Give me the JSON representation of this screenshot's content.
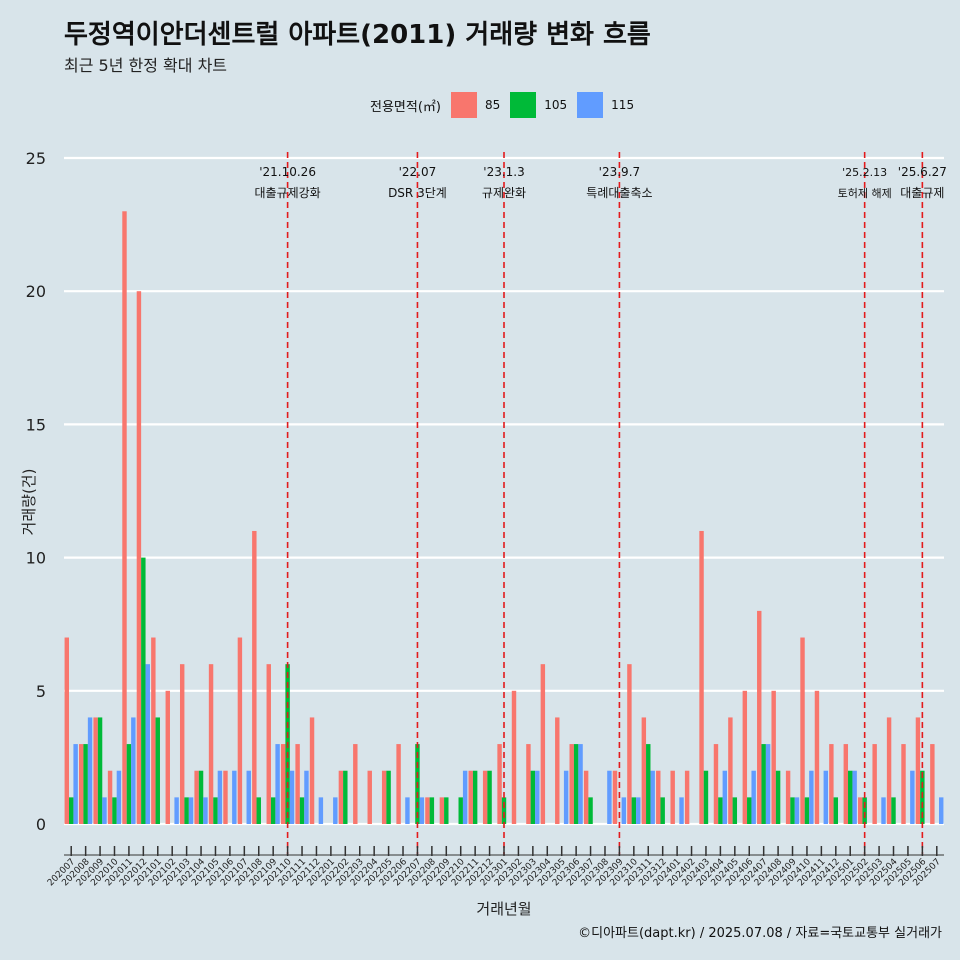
{
  "title": "두정역이안더센트럴 아파트(2011) 거래량 변화 흐름",
  "subtitle": "최근 5년 한정 확대 차트",
  "caption": "©디아파트(dapt.kr) / 2025.07.08 / 자료=국토교통부 실거래가",
  "legend": {
    "title": "전용면적(㎡)",
    "items": [
      {
        "label": "85",
        "color": "#f8766d"
      },
      {
        "label": "105",
        "color": "#00ba38"
      },
      {
        "label": "115",
        "color": "#619cff"
      }
    ]
  },
  "chart_data": {
    "type": "bar",
    "xlabel": "거래년월",
    "ylabel": "거래량(건)",
    "ylim": [
      0,
      25
    ],
    "yticks": [
      0,
      5,
      10,
      15,
      20,
      25
    ],
    "grid": true,
    "legend_position": "top",
    "categories": [
      "202007",
      "202008",
      "202009",
      "202010",
      "202011",
      "202012",
      "202101",
      "202102",
      "202103",
      "202104",
      "202105",
      "202106",
      "202107",
      "202108",
      "202109",
      "202110",
      "202111",
      "202112",
      "202201",
      "202202",
      "202203",
      "202204",
      "202205",
      "202206",
      "202207",
      "202208",
      "202209",
      "202210",
      "202211",
      "202212",
      "202301",
      "202302",
      "202303",
      "202304",
      "202305",
      "202306",
      "202307",
      "202308",
      "202309",
      "202310",
      "202311",
      "202312",
      "202401",
      "202402",
      "202403",
      "202404",
      "202405",
      "202406",
      "202407",
      "202408",
      "202409",
      "202410",
      "202411",
      "202412",
      "202501",
      "202502",
      "202503",
      "202504",
      "202505",
      "202506",
      "202507"
    ],
    "series": [
      {
        "name": "85",
        "color": "#f8766d",
        "values": [
          7,
          3,
          4,
          2,
          23,
          20,
          7,
          5,
          6,
          2,
          6,
          2,
          7,
          11,
          6,
          3,
          3,
          4,
          0,
          2,
          3,
          2,
          2,
          3,
          0,
          1,
          1,
          0,
          2,
          2,
          3,
          5,
          3,
          6,
          4,
          3,
          2,
          0,
          2,
          6,
          4,
          2,
          2,
          2,
          11,
          3,
          4,
          5,
          8,
          5,
          2,
          7,
          5,
          3,
          3,
          1,
          3,
          4,
          3,
          4,
          3
        ]
      },
      {
        "name": "105",
        "color": "#00ba38",
        "values": [
          1,
          3,
          4,
          1,
          3,
          10,
          4,
          0,
          1,
          2,
          1,
          0,
          0,
          1,
          1,
          6,
          1,
          0,
          0,
          2,
          0,
          0,
          2,
          0,
          3,
          1,
          1,
          1,
          2,
          2,
          1,
          0,
          2,
          0,
          0,
          3,
          1,
          0,
          0,
          1,
          3,
          1,
          0,
          0,
          2,
          1,
          1,
          1,
          3,
          2,
          1,
          1,
          0,
          1,
          2,
          1,
          0,
          1,
          0,
          2,
          0
        ]
      },
      {
        "name": "115",
        "color": "#619cff",
        "values": [
          3,
          4,
          1,
          2,
          4,
          6,
          0,
          1,
          1,
          1,
          2,
          2,
          2,
          0,
          3,
          2,
          2,
          1,
          1,
          0,
          0,
          0,
          0,
          1,
          1,
          0,
          0,
          2,
          0,
          0,
          0,
          0,
          2,
          0,
          2,
          3,
          0,
          2,
          1,
          1,
          2,
          0,
          1,
          0,
          0,
          2,
          0,
          2,
          3,
          0,
          1,
          2,
          2,
          0,
          2,
          0,
          1,
          0,
          2,
          0,
          1
        ]
      }
    ],
    "annotations": [
      {
        "date": "'21.10.26",
        "text": "대출규제강화",
        "category": "202110"
      },
      {
        "date": "'22.07",
        "text": "DSR 3단계",
        "category": "202207"
      },
      {
        "date": "'23.1.3",
        "text": "규제완화",
        "category": "202301"
      },
      {
        "date": "'23.9.7",
        "text": "특례대출축소",
        "category": "202309"
      },
      {
        "date": "'25.2.13",
        "text": "토허제 해제",
        "category": "202502"
      },
      {
        "date": "'25.6.27",
        "text": "대출규제",
        "category": "202506"
      }
    ]
  }
}
